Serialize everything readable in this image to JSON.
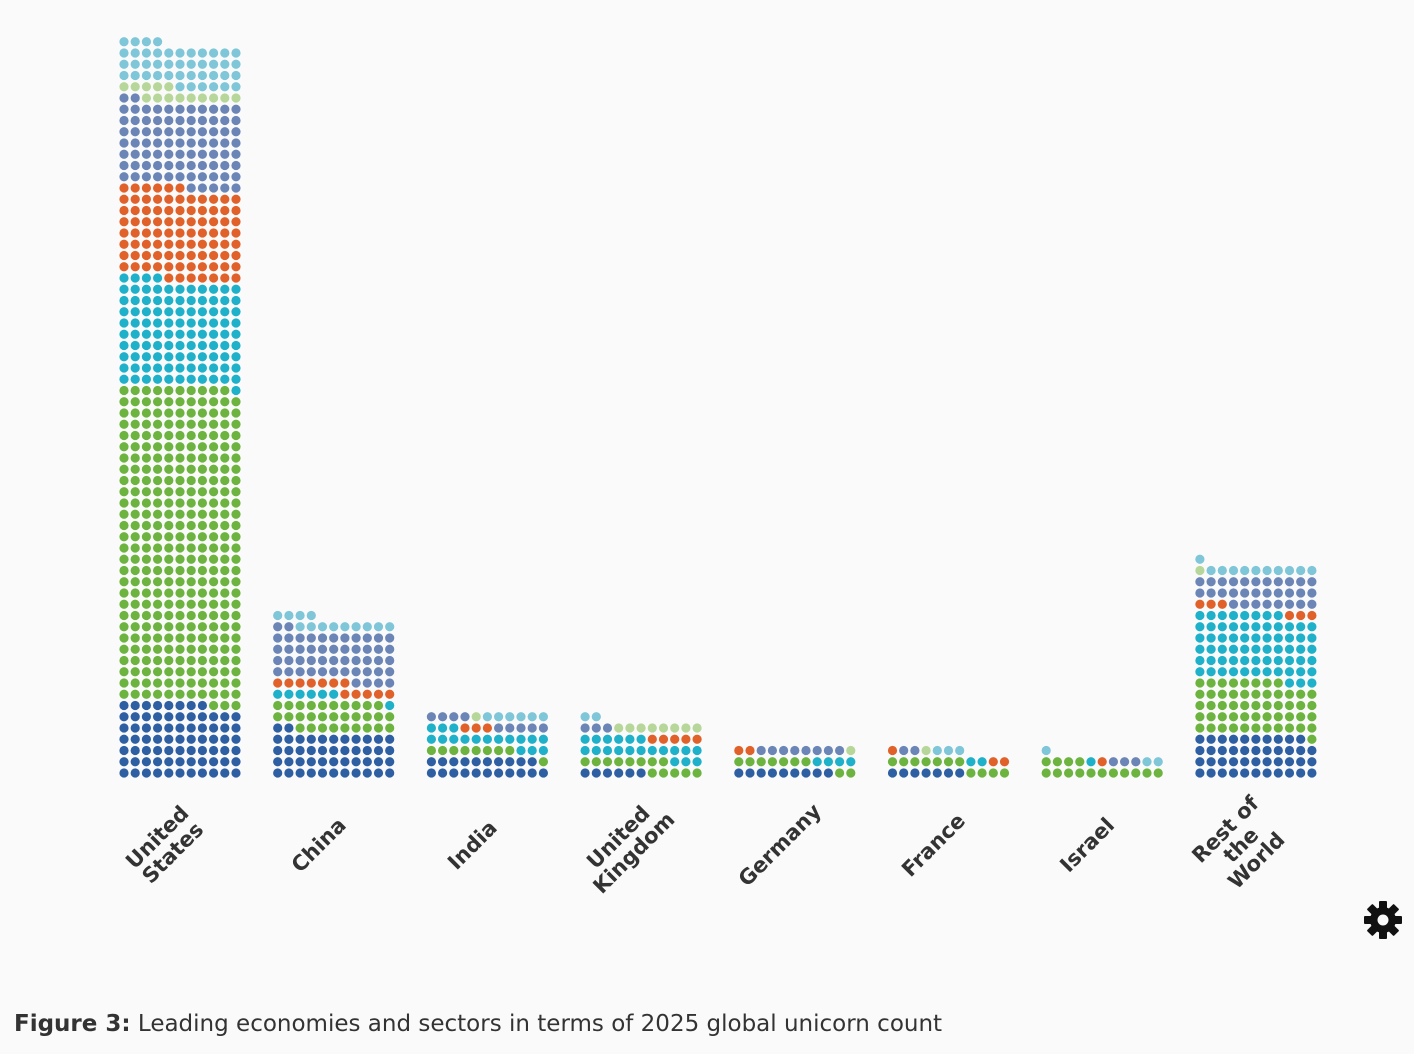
{
  "chart_data": {
    "type": "waffle",
    "categories": [
      [
        "United",
        "States"
      ],
      [
        "China"
      ],
      [
        "India"
      ],
      [
        "United",
        "Kingdom"
      ],
      [
        "Germany"
      ],
      [
        "France"
      ],
      [
        "Israel"
      ],
      [
        "Rest of",
        "the",
        "World"
      ]
    ],
    "columns": 11,
    "series": [
      {
        "color": "#2e5fa3",
        "values": [
          74,
          46,
          21,
          6,
          9,
          7,
          0,
          43
        ]
      },
      {
        "color": "#6db33f",
        "values": [
          310,
          30,
          9,
          13,
          9,
          11,
          15,
          53
        ]
      },
      {
        "color": "#1fb1c9",
        "values": [
          104,
          7,
          17,
          20,
          4,
          2,
          1,
          66
        ]
      },
      {
        "color": "#e0622a",
        "values": [
          90,
          12,
          3,
          5,
          2,
          3,
          1,
          6
        ]
      },
      {
        "color": "#6a85b6",
        "values": [
          84,
          50,
          9,
          3,
          8,
          2,
          3,
          30
        ]
      },
      {
        "color": "#b7d79a",
        "values": [
          14,
          0,
          1,
          8,
          1,
          1,
          0,
          1
        ]
      },
      {
        "color": "#7ec6d8",
        "values": [
          43,
          13,
          6,
          2,
          0,
          3,
          3,
          11
        ]
      }
    ]
  },
  "caption": {
    "label": "Figure 3:",
    "text": "Leading economies and sectors in terms of 2025 global unicorn count"
  }
}
